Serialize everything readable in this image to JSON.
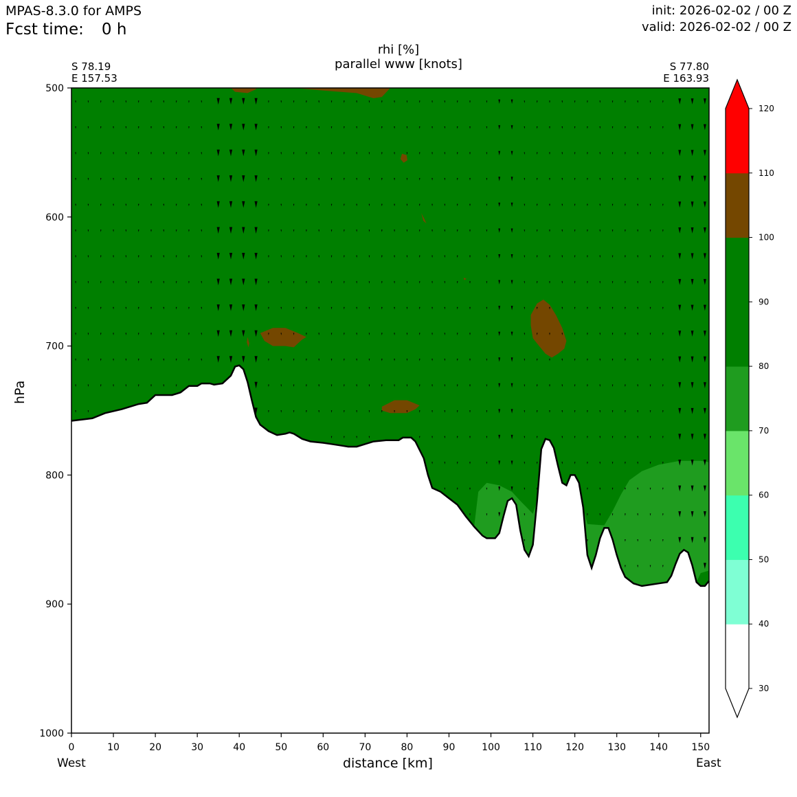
{
  "header": {
    "model": "MPAS-8.3.0 for AMPS",
    "fcst_label": "Fcst time:",
    "fcst_value": "0 h",
    "init": "init: 2026-02-02 / 00 Z",
    "valid": "valid: 2026-02-02 / 00 Z"
  },
  "chart_data": {
    "type": "heatmap",
    "title": "rhi [%]",
    "subtitle": "parallel www [knots]",
    "xlabel": "distance [km]",
    "ylabel": "hPa",
    "left_point": {
      "lat": "S 78.19",
      "lon": "E 157.53"
    },
    "right_point": {
      "lat": "S 77.80",
      "lon": "E 163.93"
    },
    "direction_left": "West",
    "direction_right": "East",
    "xlim": [
      0,
      152
    ],
    "ylim": [
      1000,
      500
    ],
    "x_ticks": [
      0,
      10,
      20,
      30,
      40,
      50,
      60,
      70,
      80,
      90,
      100,
      110,
      120,
      130,
      140,
      150
    ],
    "y_ticks": [
      500,
      600,
      700,
      800,
      900,
      1000
    ],
    "colorbar": {
      "levels": [
        30,
        40,
        50,
        60,
        70,
        80,
        90,
        100,
        110,
        120
      ],
      "colors": [
        "#ffffff",
        "#7fffd4",
        "#3cffaf",
        "#6ae46a",
        "#1f9c1f",
        "#007f00",
        "#007f00",
        "#744700",
        "#ff0000"
      ],
      "extend": "both"
    },
    "fill_colors": {
      "main": "#007f00",
      "low": "#1f9c1f",
      "supersat": "#744700"
    },
    "terrain_pressure": [
      [
        0,
        758
      ],
      [
        5,
        756
      ],
      [
        8,
        752
      ],
      [
        12,
        749
      ],
      [
        16,
        745
      ],
      [
        18,
        744
      ],
      [
        20,
        738
      ],
      [
        24,
        738
      ],
      [
        26,
        736
      ],
      [
        28,
        731
      ],
      [
        30,
        731
      ],
      [
        31,
        729
      ],
      [
        33,
        729
      ],
      [
        34,
        730
      ],
      [
        36,
        729
      ],
      [
        38,
        723
      ],
      [
        39,
        716
      ],
      [
        40,
        715
      ],
      [
        41,
        718
      ],
      [
        42,
        728
      ],
      [
        43,
        742
      ],
      [
        44,
        755
      ],
      [
        45,
        761
      ],
      [
        47,
        766
      ],
      [
        49,
        769
      ],
      [
        51,
        768
      ],
      [
        52,
        767
      ],
      [
        53,
        768
      ],
      [
        55,
        772
      ],
      [
        57,
        774
      ],
      [
        60,
        775
      ],
      [
        62,
        776
      ],
      [
        64,
        777
      ],
      [
        66,
        778
      ],
      [
        68,
        778
      ],
      [
        70,
        776
      ],
      [
        72,
        774
      ],
      [
        75,
        773
      ],
      [
        78,
        773
      ],
      [
        79,
        771
      ],
      [
        81,
        771
      ],
      [
        82,
        774
      ],
      [
        84,
        787
      ],
      [
        85,
        800
      ],
      [
        86,
        810
      ],
      [
        88,
        813
      ],
      [
        90,
        818
      ],
      [
        92,
        823
      ],
      [
        94,
        832
      ],
      [
        96,
        840
      ],
      [
        98,
        847
      ],
      [
        99,
        849
      ],
      [
        101,
        849
      ],
      [
        102,
        845
      ],
      [
        103,
        832
      ],
      [
        104,
        820
      ],
      [
        105,
        818
      ],
      [
        106,
        823
      ],
      [
        107,
        843
      ],
      [
        108,
        858
      ],
      [
        109,
        863
      ],
      [
        110,
        854
      ],
      [
        111,
        820
      ],
      [
        112,
        780
      ],
      [
        113,
        772
      ],
      [
        114,
        773
      ],
      [
        115,
        779
      ],
      [
        116,
        793
      ],
      [
        117,
        806
      ],
      [
        118,
        808
      ],
      [
        119,
        800
      ],
      [
        120,
        800
      ],
      [
        121,
        806
      ],
      [
        122,
        825
      ],
      [
        123,
        862
      ],
      [
        124,
        872
      ],
      [
        125,
        862
      ],
      [
        126,
        849
      ],
      [
        127,
        841
      ],
      [
        128,
        841
      ],
      [
        129,
        850
      ],
      [
        130,
        862
      ],
      [
        131,
        872
      ],
      [
        132,
        879
      ],
      [
        134,
        884
      ],
      [
        136,
        886
      ],
      [
        138,
        885
      ],
      [
        140,
        884
      ],
      [
        142,
        883
      ],
      [
        143,
        878
      ],
      [
        144,
        869
      ],
      [
        145,
        861
      ],
      [
        146,
        858
      ],
      [
        147,
        860
      ],
      [
        148,
        870
      ],
      [
        149,
        883
      ],
      [
        150,
        886
      ],
      [
        151,
        886
      ],
      [
        152,
        882
      ]
    ],
    "low_rh_region_80": [
      [
        96,
        840
      ],
      [
        97,
        813
      ],
      [
        99,
        806
      ],
      [
        102,
        808
      ],
      [
        105,
        813
      ],
      [
        107,
        820
      ],
      [
        110,
        830
      ],
      [
        111,
        820
      ],
      [
        112,
        780
      ],
      [
        113,
        772
      ],
      [
        114,
        773
      ],
      [
        115,
        779
      ],
      [
        116,
        793
      ],
      [
        117,
        806
      ],
      [
        118,
        808
      ],
      [
        119,
        800
      ],
      [
        120,
        800
      ],
      [
        121,
        806
      ],
      [
        122,
        825
      ],
      [
        123,
        838
      ],
      [
        127,
        839
      ],
      [
        129,
        828
      ],
      [
        131,
        815
      ],
      [
        133,
        804
      ],
      [
        136,
        797
      ],
      [
        140,
        792
      ],
      [
        145,
        789
      ],
      [
        150,
        789
      ],
      [
        152,
        790
      ],
      [
        152,
        874
      ],
      [
        150,
        876
      ],
      [
        149,
        883
      ],
      [
        148,
        870
      ],
      [
        147,
        860
      ],
      [
        146,
        858
      ],
      [
        145,
        861
      ],
      [
        144,
        869
      ],
      [
        143,
        878
      ],
      [
        142,
        883
      ],
      [
        140,
        884
      ],
      [
        138,
        885
      ],
      [
        136,
        886
      ],
      [
        134,
        884
      ],
      [
        132,
        879
      ],
      [
        131,
        872
      ],
      [
        130,
        862
      ],
      [
        129,
        850
      ],
      [
        128,
        841
      ],
      [
        127,
        841
      ],
      [
        126,
        849
      ],
      [
        125,
        862
      ],
      [
        124,
        872
      ],
      [
        123,
        862
      ],
      [
        122,
        825
      ],
      [
        121,
        806
      ],
      [
        120,
        800
      ],
      [
        119,
        800
      ],
      [
        118,
        808
      ],
      [
        117,
        806
      ],
      [
        116,
        793
      ],
      [
        115,
        779
      ],
      [
        114,
        773
      ],
      [
        113,
        772
      ],
      [
        112,
        780
      ],
      [
        111,
        820
      ],
      [
        110,
        854
      ],
      [
        109,
        863
      ],
      [
        108,
        858
      ],
      [
        107,
        843
      ],
      [
        106,
        823
      ],
      [
        105,
        818
      ],
      [
        104,
        820
      ],
      [
        103,
        832
      ],
      [
        102,
        845
      ],
      [
        101,
        849
      ],
      [
        99,
        849
      ],
      [
        98,
        847
      ]
    ],
    "supersat_regions_100": [
      [
        [
          38,
          500
        ],
        [
          39,
          503
        ],
        [
          42,
          504
        ],
        [
          44,
          501
        ],
        [
          44,
          500
        ]
      ],
      [
        [
          53,
          500
        ],
        [
          60,
          502
        ],
        [
          68,
          504
        ],
        [
          72,
          508
        ],
        [
          74,
          507
        ],
        [
          76,
          500
        ]
      ],
      [
        [
          78.8,
          551
        ],
        [
          79.9,
          552
        ],
        [
          80.1,
          556
        ],
        [
          79.2,
          558
        ],
        [
          78.4,
          555
        ]
      ],
      [
        [
          83.4,
          597
        ],
        [
          84.2,
          602
        ],
        [
          84.6,
          605
        ],
        [
          83.9,
          603
        ]
      ],
      [
        [
          93.5,
          647
        ],
        [
          94.2,
          648
        ],
        [
          93.6,
          649
        ]
      ],
      [
        [
          45,
          690
        ],
        [
          48,
          686
        ],
        [
          51,
          686
        ],
        [
          54,
          690
        ],
        [
          56,
          693
        ],
        [
          55,
          695
        ],
        [
          54,
          698
        ],
        [
          53,
          701
        ],
        [
          51,
          700
        ],
        [
          48,
          700
        ],
        [
          46,
          696
        ]
      ],
      [
        [
          42,
          693
        ],
        [
          42.4,
          698
        ],
        [
          42.2,
          701
        ],
        [
          41.8,
          697
        ]
      ],
      [
        [
          109.5,
          676
        ],
        [
          111,
          667
        ],
        [
          112.5,
          664
        ],
        [
          114,
          668
        ],
        [
          115.5,
          676
        ],
        [
          117,
          686
        ],
        [
          118,
          696
        ],
        [
          117.5,
          702
        ],
        [
          116,
          706
        ],
        [
          114.5,
          709
        ],
        [
          113,
          706
        ],
        [
          111.5,
          700
        ],
        [
          110,
          694
        ],
        [
          109.5,
          684
        ]
      ],
      [
        [
          74,
          747
        ],
        [
          77,
          742
        ],
        [
          80,
          742
        ],
        [
          83,
          746
        ],
        [
          82,
          749
        ],
        [
          80,
          752
        ],
        [
          76,
          752
        ],
        [
          74,
          750
        ]
      ]
    ],
    "wind_arrows": {
      "x_columns": [
        1,
        4,
        7,
        10,
        13,
        16,
        19,
        22,
        25,
        28,
        31,
        35,
        38,
        41,
        44,
        47,
        50,
        53,
        56,
        59,
        62,
        65,
        68,
        71,
        74,
        77,
        80,
        83,
        86,
        89,
        92,
        95,
        99,
        102,
        105,
        108,
        111,
        114,
        117,
        120,
        123,
        126,
        129,
        132,
        135,
        138,
        141,
        145,
        148,
        151
      ],
      "p_levels": [
        511,
        531,
        551,
        571,
        591,
        611,
        631,
        651,
        671,
        691,
        711,
        731,
        751,
        771,
        791,
        811,
        831,
        851,
        871
      ],
      "note": "small parallel-wind vectors; strongest in columns near 38-44 km and 145-151 km"
    }
  }
}
